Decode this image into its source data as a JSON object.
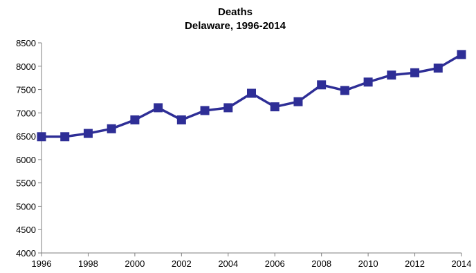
{
  "chart_data": {
    "type": "line",
    "title": "Deaths",
    "subtitle": "Delaware, 1996-2014",
    "xlabel": "",
    "ylabel": "",
    "x": [
      1996,
      1997,
      1998,
      1999,
      2000,
      2001,
      2002,
      2003,
      2004,
      2005,
      2006,
      2007,
      2008,
      2009,
      2010,
      2011,
      2012,
      2013,
      2014
    ],
    "series": [
      {
        "values": [
          6490,
          6490,
          6560,
          6660,
          6850,
          7110,
          6850,
          7050,
          7110,
          7420,
          7130,
          7240,
          7600,
          7480,
          7660,
          7810,
          7860,
          7960,
          8250
        ],
        "color": "#2E2E96",
        "marker": "square"
      }
    ],
    "xlim": [
      1996,
      2014
    ],
    "ylim": [
      4000,
      8500
    ],
    "x_ticks": [
      "1996",
      "1998",
      "2000",
      "2002",
      "2004",
      "2006",
      "2008",
      "2010",
      "2012",
      "2014"
    ],
    "y_ticks": [
      "4000",
      "4500",
      "5000",
      "5500",
      "6000",
      "6500",
      "7000",
      "7500",
      "8000",
      "8500"
    ],
    "grid": false,
    "legend": "none"
  }
}
